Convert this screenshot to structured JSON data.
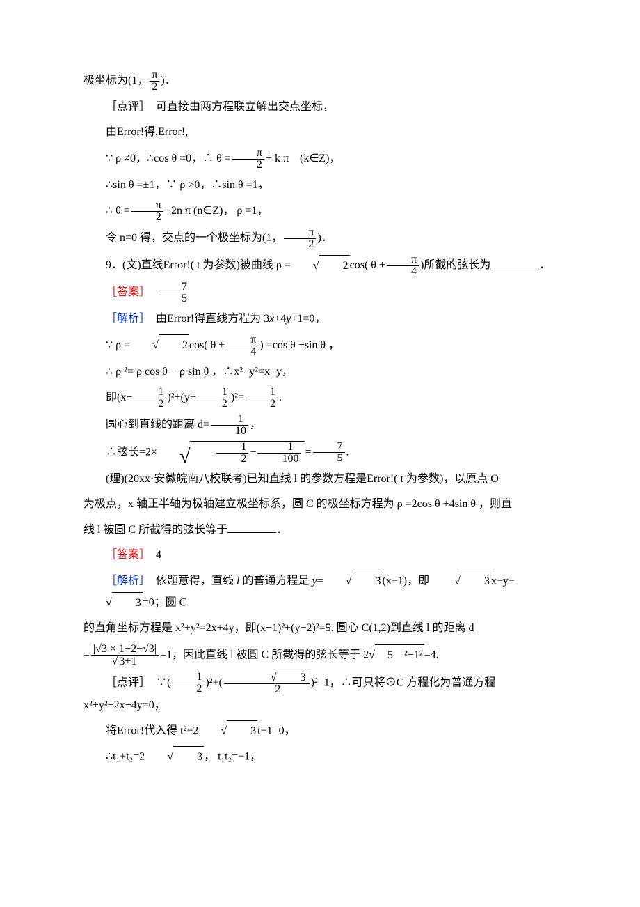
{
  "colors": {
    "text": "#000000",
    "answer": "#ff0000",
    "analysis": "#0033cc",
    "background": "#ffffff"
  },
  "typography": {
    "body_fontsize_pt": 12,
    "line_height": 1.9,
    "font_family": "SimSun / Times New Roman"
  },
  "text": {
    "l01a": "极坐标为(1，",
    "l01b": ")．",
    "l02": "［点评］　可直接由两方程联立解出交点坐标，",
    "l03": "由Error!得,Error!,",
    "l04a": "∵ ρ ≠0，∴cos θ =0，∴ θ =",
    "l04b": "+ k π　(k∈Z)，",
    "l05": "∴sin θ =±1，∵ ρ >0，∴sin θ =1，",
    "l06a": "∴ θ =",
    "l06b": "+2n π (n∈Z)， ρ =1，",
    "l07a": "令 n=0 得，交点的一个极坐标为(1，",
    "l07b": ")．",
    "l08a": "9．(文)直线Error!( t 为参数)被曲线 ρ =",
    "l08b": "cos( θ +",
    "l08c": ")所截的弦长为",
    "l08d": "．",
    "ans1_label": "［答案］",
    "l10": "［解析］　由Error!得直线方程为 3x+4y+1=0，",
    "l11a": "∵ ρ =",
    "l11b": "cos( θ +",
    "l11c": ") =cos θ −sin θ ，",
    "l12": "∴ ρ ²= ρ cos θ − ρ sin θ ，∴x²+y²=x−y，",
    "l13a": "即(x−",
    "l13b": ")²+(y+",
    "l13c": ")²=",
    "l13d": ".",
    "l14a": "圆心到直线的距离 d=",
    "l14b": "，",
    "l15a": "∴弦长=2×",
    "l15b": "=",
    "l15c": ".",
    "l16": "(理)(20xx·安徽皖南八校联考)已知直线 l 的参数方程是Error!( t 为参数)，以原点 O",
    "l17": "为极点，x 轴正半轴为极轴建立极坐标系，圆 C 的极坐标方程为 ρ =2cos θ +4sin θ ，则直",
    "l18a": "线 l 被圆 C 所截得的弦长等于",
    "l18b": "．",
    "ans2_label": "［答案］",
    "ans2_value": "4",
    "l20a": "［解析］　依题意得，直线 l 的普通方程是 y=",
    "l20b": "(x−1)，即 ",
    "l20c": "x−y−",
    "l20d": "=0；圆 C",
    "l21": "的直角坐标方程是 x²+y²=2x+4y，即(x−1)²+(y−2)²=5. 圆心 C(1,2)到直线 l 的距离 d",
    "l22a": "=",
    "l22b": "=1，因此直线 l 被圆 C 所截得的弦长等于 2",
    "l22c": "=4.",
    "l23a": "［点评］　∵(",
    "l23b": ")²+(",
    "l23c": ")²=1，∴可只将⊙C 方程化为普通方程 x²+y²−2x−4y=0，",
    "l24a": "将Error!代入得 t²−2",
    "l24b": "t−1=0，",
    "l25a": "∴t₁+t₂=2",
    "l25b": "， t₁t₂=−1，"
  },
  "fracs": {
    "pi2": {
      "num": "π",
      "den": "2"
    },
    "pi4": {
      "num": "π",
      "den": "4"
    },
    "sev5": {
      "num": "7",
      "den": "5"
    },
    "half": {
      "num": "1",
      "den": "2"
    },
    "tenth": {
      "num": "1",
      "den": "10"
    },
    "hund": {
      "num": "1",
      "den": "100"
    },
    "root3_2": {
      "num": "√3",
      "den": "2"
    }
  },
  "roots": {
    "two": "2",
    "three": "3",
    "threep1": "3+1",
    "expr5": "　5　²−1²",
    "abs_expr_num": "|√3 × 1−2−√3|"
  }
}
